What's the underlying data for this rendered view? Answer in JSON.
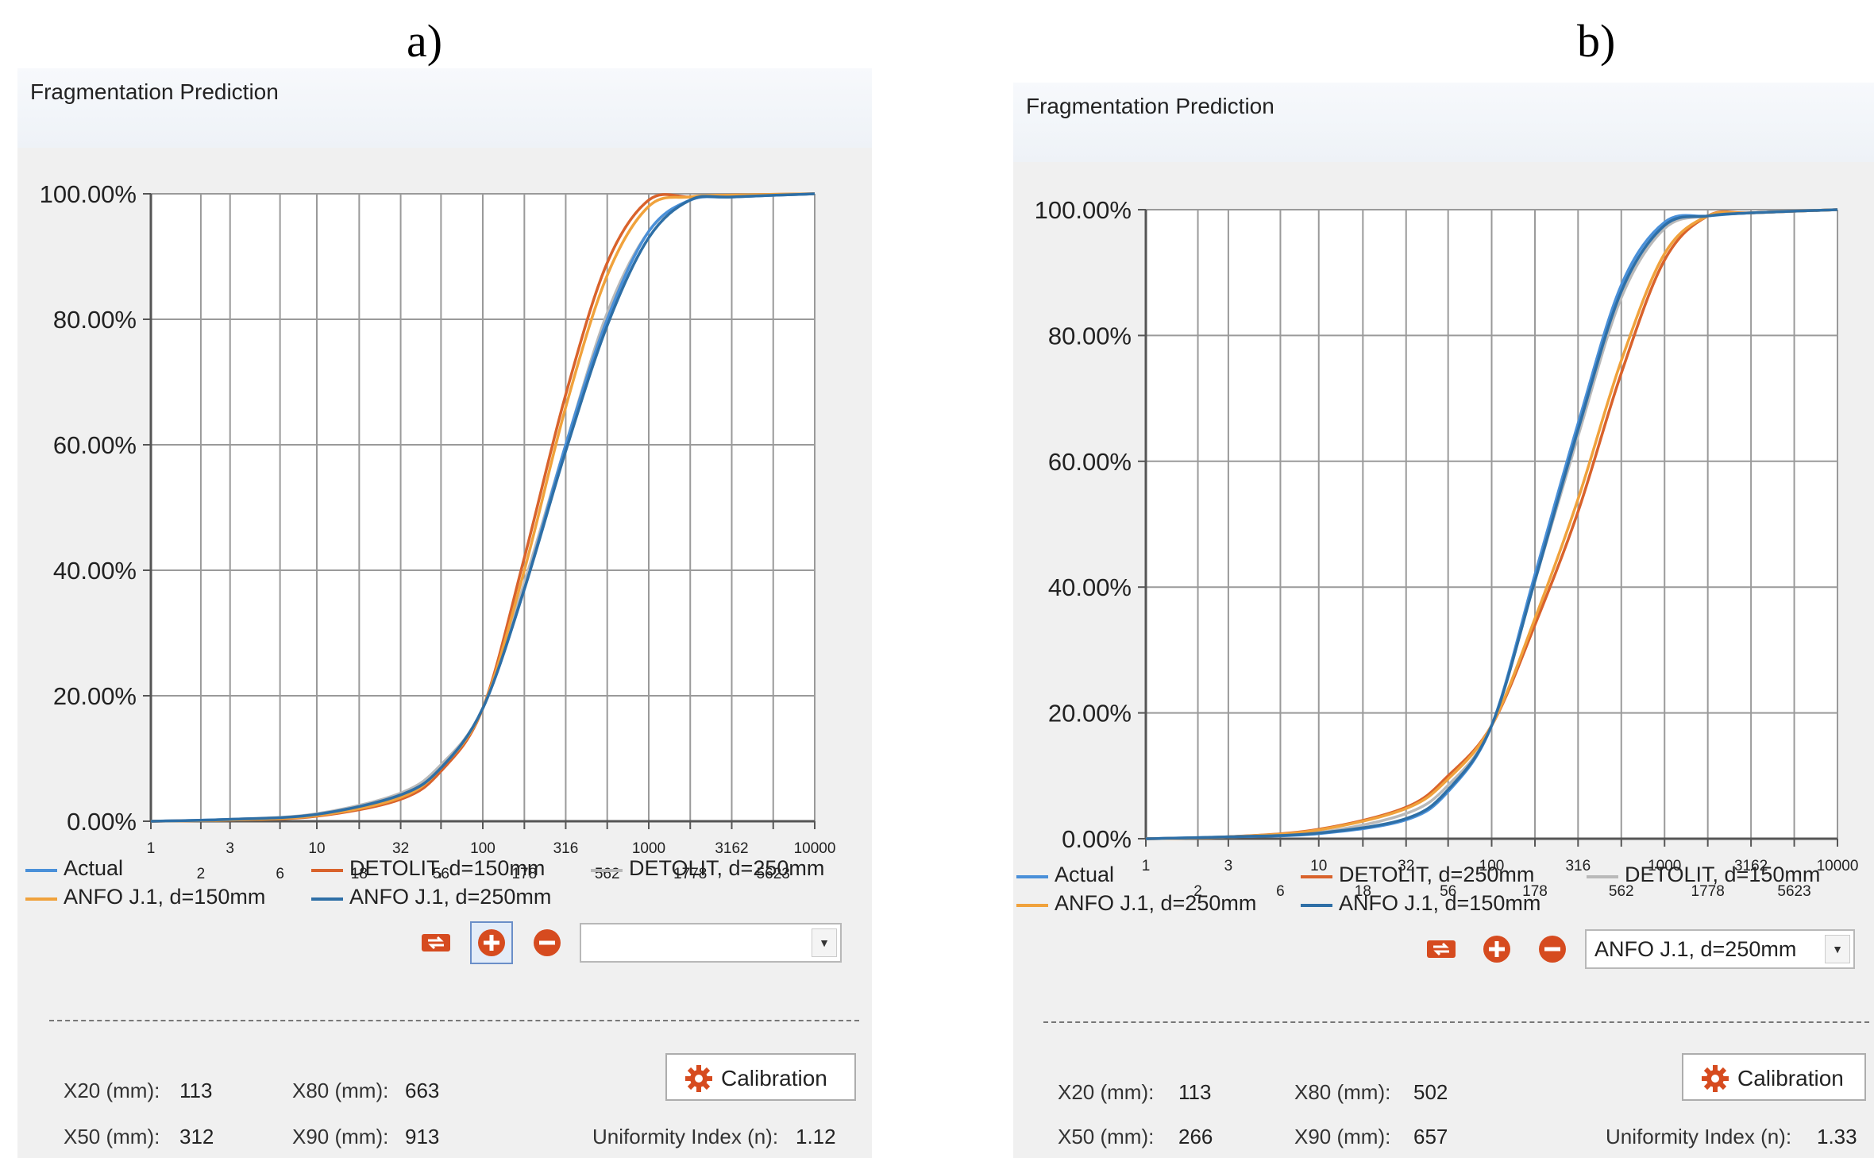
{
  "panels": [
    {
      "caption": "a)",
      "title": "Fragmentation Prediction",
      "legend": [
        {
          "label": "Actual",
          "color": "#4a90d9"
        },
        {
          "label": "DETOLIT, d=150mm",
          "color": "#d9622b"
        },
        {
          "label": "DETOLIT, d=250mm",
          "color": "#b9b9b9"
        },
        {
          "label": "ANFO J.1, d=150mm",
          "color": "#f0a23c"
        },
        {
          "label": "ANFO J.1, d=250mm",
          "color": "#2e6fa6"
        }
      ],
      "toolbar": {
        "refresh_icon": "refresh-icon",
        "add_icon": "add-icon",
        "remove_icon": "remove-icon",
        "combo_value": ""
      },
      "calibration_label": "Calibration",
      "stats": {
        "x20_label": "X20 (mm):",
        "x20_value": "113",
        "x50_label": "X50 (mm):",
        "x50_value": "312",
        "x80_label": "X80 (mm):",
        "x80_value": "663",
        "x90_label": "X90 (mm):",
        "x90_value": "913",
        "uniformity_label": "Uniformity Index (n):",
        "uniformity_value": "1.12"
      }
    },
    {
      "caption": "b)",
      "title": "Fragmentation Prediction",
      "legend": [
        {
          "label": "Actual",
          "color": "#4a90d9"
        },
        {
          "label": "DETOLIT, d=250mm",
          "color": "#d9622b"
        },
        {
          "label": "DETOLIT, d=150mm",
          "color": "#b9b9b9"
        },
        {
          "label": "ANFO J.1, d=250mm",
          "color": "#f0a23c"
        },
        {
          "label": "ANFO J.1, d=150mm",
          "color": "#2e6fa6"
        }
      ],
      "toolbar": {
        "refresh_icon": "refresh-icon",
        "add_icon": "add-icon",
        "remove_icon": "remove-icon",
        "combo_value": "ANFO J.1, d=250mm"
      },
      "calibration_label": "Calibration",
      "stats": {
        "x20_label": "X20 (mm):",
        "x20_value": "113",
        "x50_label": "X50 (mm):",
        "x50_value": "266",
        "x80_label": "X80 (mm):",
        "x80_value": "502",
        "x90_label": "X90 (mm):",
        "x90_value": "657",
        "uniformity_label": "Uniformity Index (n):",
        "uniformity_value": "1.33"
      }
    }
  ],
  "chart_data": [
    {
      "type": "line",
      "x_scale": "log",
      "xlim": [
        1,
        10000
      ],
      "ylim": [
        0,
        100
      ],
      "grid": true,
      "legend_position": "bottom",
      "x_ticks": [
        "1",
        "2",
        "3",
        "6",
        "10",
        "18",
        "32",
        "56",
        "100",
        "178",
        "316",
        "562",
        "1000",
        "1778",
        "3162",
        "5623",
        "10000"
      ],
      "y_ticks": [
        "0.00%",
        "20.00%",
        "40.00%",
        "60.00%",
        "80.00%",
        "100.00%"
      ],
      "series": [
        {
          "name": "Actual",
          "color": "#4a90d9",
          "x": [
            1,
            3,
            10,
            32,
            56,
            100,
            178,
            316,
            562,
            1000,
            1778,
            3162,
            10000
          ],
          "y": [
            0,
            0.3,
            1,
            4,
            8,
            18,
            37,
            60,
            80,
            94,
            99,
            99.5,
            100
          ]
        },
        {
          "name": "DETOLIT, d=150mm",
          "color": "#d9622b",
          "x": [
            1,
            3,
            10,
            32,
            56,
            100,
            178,
            316,
            562,
            1000,
            1778,
            3162,
            10000
          ],
          "y": [
            0,
            0.2,
            0.8,
            3.5,
            8,
            18,
            42,
            68,
            89,
            99,
            99.5,
            99.8,
            100
          ]
        },
        {
          "name": "DETOLIT, d=250mm",
          "color": "#b9b9b9",
          "x": [
            1,
            3,
            10,
            32,
            56,
            100,
            178,
            316,
            562,
            1000,
            1778,
            3162,
            10000
          ],
          "y": [
            0,
            0.3,
            1.2,
            4.5,
            9,
            18,
            38,
            60,
            81,
            94,
            99,
            99.5,
            100
          ]
        },
        {
          "name": "ANFO J.1, d=150mm",
          "color": "#f0a23c",
          "x": [
            1,
            3,
            10,
            32,
            56,
            100,
            178,
            316,
            562,
            1000,
            1778,
            3162,
            10000
          ],
          "y": [
            0,
            0.2,
            0.9,
            3.8,
            8.5,
            18,
            40,
            66,
            87,
            98,
            99.5,
            99.8,
            100
          ]
        },
        {
          "name": "ANFO J.1, d=250mm",
          "color": "#2e6fa6",
          "x": [
            1,
            3,
            10,
            32,
            56,
            100,
            178,
            316,
            562,
            1000,
            1778,
            3162,
            10000
          ],
          "y": [
            0,
            0.3,
            1.1,
            4.2,
            8.5,
            18,
            37,
            59,
            79,
            93,
            99,
            99.5,
            100
          ]
        }
      ]
    },
    {
      "type": "line",
      "x_scale": "log",
      "xlim": [
        1,
        10000
      ],
      "ylim": [
        0,
        100
      ],
      "grid": true,
      "legend_position": "bottom",
      "x_ticks": [
        "1",
        "2",
        "3",
        "6",
        "10",
        "18",
        "32",
        "56",
        "100",
        "178",
        "316",
        "562",
        "1000",
        "1778",
        "3162",
        "5623",
        "10000"
      ],
      "y_ticks": [
        "0.00%",
        "20.00%",
        "40.00%",
        "60.00%",
        "80.00%",
        "100.00%"
      ],
      "series": [
        {
          "name": "Actual",
          "color": "#4a90d9",
          "x": [
            1,
            3,
            10,
            32,
            56,
            100,
            178,
            316,
            562,
            1000,
            1778,
            3162,
            10000
          ],
          "y": [
            0,
            0.3,
            0.8,
            3,
            7.5,
            18,
            42,
            66,
            88,
            98,
            99,
            99.5,
            100
          ]
        },
        {
          "name": "DETOLIT, d=250mm",
          "color": "#d9622b",
          "x": [
            1,
            3,
            10,
            32,
            56,
            100,
            178,
            316,
            562,
            1000,
            1778,
            3162,
            10000
          ],
          "y": [
            0,
            0.3,
            1.5,
            5,
            10,
            18,
            34,
            52,
            74,
            92,
            99,
            99.5,
            100
          ]
        },
        {
          "name": "DETOLIT, d=150mm",
          "color": "#b9b9b9",
          "x": [
            1,
            3,
            10,
            32,
            56,
            100,
            178,
            316,
            562,
            1000,
            1778,
            3162,
            10000
          ],
          "y": [
            0,
            0.3,
            1,
            4,
            8.5,
            18,
            41,
            64,
            86,
            97,
            99,
            99.5,
            100
          ]
        },
        {
          "name": "ANFO J.1, d=250mm",
          "color": "#f0a23c",
          "x": [
            1,
            3,
            10,
            32,
            56,
            100,
            178,
            316,
            562,
            1000,
            1778,
            3162,
            10000
          ],
          "y": [
            0,
            0.3,
            1.4,
            4.8,
            9.5,
            18,
            35,
            54,
            76,
            93,
            99,
            99.5,
            100
          ]
        },
        {
          "name": "ANFO J.1, d=150mm",
          "color": "#2e6fa6",
          "x": [
            1,
            3,
            10,
            32,
            56,
            100,
            178,
            316,
            562,
            1000,
            1778,
            3162,
            10000
          ],
          "y": [
            0,
            0.3,
            0.9,
            3.2,
            7.8,
            18,
            41,
            65,
            87,
            97.5,
            99,
            99.5,
            100
          ]
        }
      ]
    }
  ]
}
